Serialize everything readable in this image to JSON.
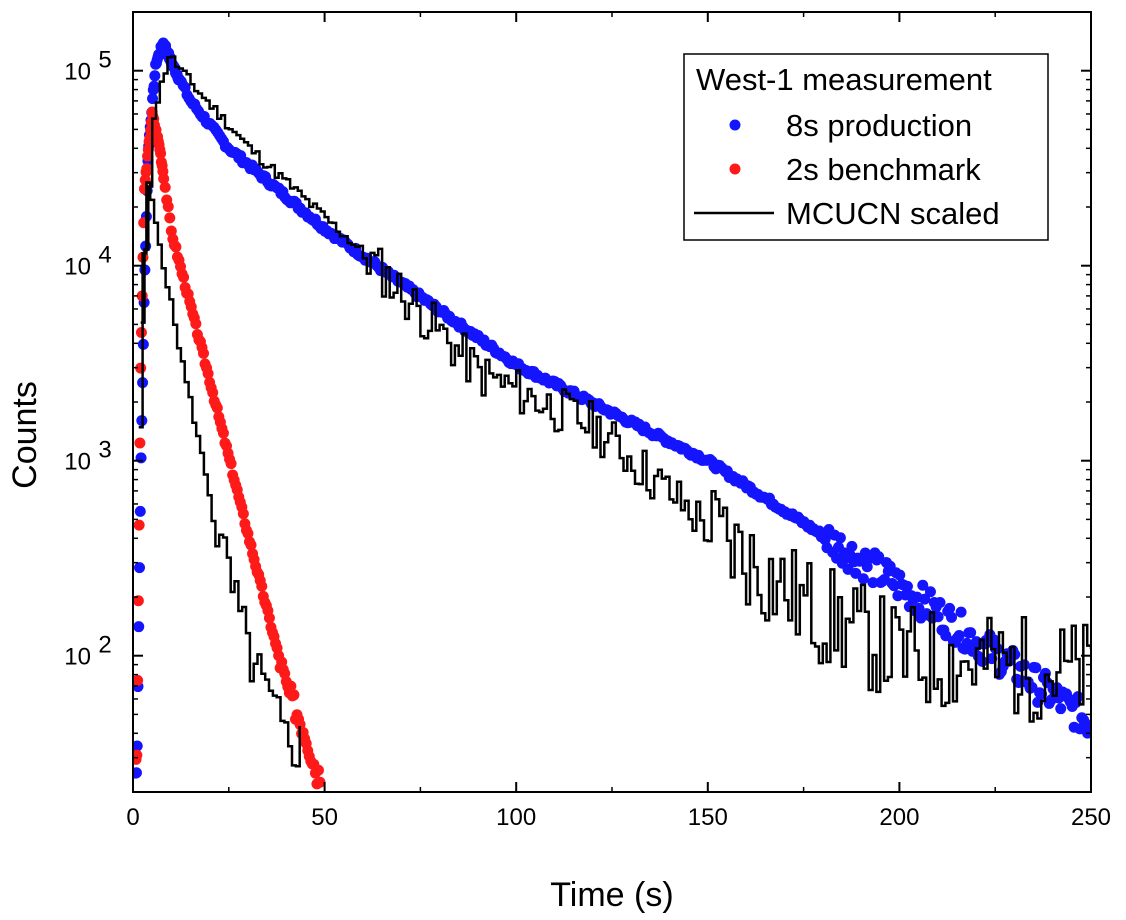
{
  "chart_data": {
    "type": "scatter",
    "title": "",
    "xlabel": "Time (s)",
    "ylabel": "Counts",
    "xlim": [
      0,
      250
    ],
    "ylim": [
      20,
      200000
    ],
    "yscale": "log",
    "x_ticks": [
      0,
      50,
      100,
      150,
      200,
      250
    ],
    "x_tick_labels": [
      "0",
      "50",
      "100",
      "150",
      "200",
      "250"
    ],
    "y_ticks": [
      100,
      1000,
      10000,
      100000
    ],
    "y_tick_labels": [
      {
        "base": "10",
        "exp": "2"
      },
      {
        "base": "10",
        "exp": "3"
      },
      {
        "base": "10",
        "exp": "4"
      },
      {
        "base": "10",
        "exp": "5"
      }
    ],
    "grid": false,
    "legend": {
      "title": "West-1 measurement",
      "position": "top-right",
      "entries": [
        "8s production",
        "2s benchmark",
        "MCUCN scaled"
      ]
    },
    "series": [
      {
        "name": "8s production",
        "kind": "markers",
        "color": "#1414ff",
        "description_points": [
          {
            "x": 1,
            "y": 25
          },
          {
            "x": 2,
            "y": 800
          },
          {
            "x": 3,
            "y": 8000
          },
          {
            "x": 4,
            "y": 40000
          },
          {
            "x": 6,
            "y": 110000
          },
          {
            "x": 8,
            "y": 140000
          },
          {
            "x": 10,
            "y": 110000
          },
          {
            "x": 15,
            "y": 70000
          },
          {
            "x": 25,
            "y": 40000
          },
          {
            "x": 50,
            "y": 15500
          },
          {
            "x": 100,
            "y": 3100
          },
          {
            "x": 150,
            "y": 1000
          },
          {
            "x": 200,
            "y": 230
          },
          {
            "x": 250,
            "y": 45
          }
        ]
      },
      {
        "name": "2s benchmark",
        "kind": "markers",
        "color": "#ff1a1a",
        "description_points": [
          {
            "x": 1,
            "y": 30
          },
          {
            "x": 2,
            "y": 3000
          },
          {
            "x": 3,
            "y": 25000
          },
          {
            "x": 5,
            "y": 60000
          },
          {
            "x": 7,
            "y": 40000
          },
          {
            "x": 10,
            "y": 15000
          },
          {
            "x": 20,
            "y": 2600
          },
          {
            "x": 30,
            "y": 420
          },
          {
            "x": 40,
            "y": 70
          },
          {
            "x": 45,
            "y": 40
          },
          {
            "x": 48,
            "y": 25
          }
        ]
      },
      {
        "name": "MCUCN scaled",
        "kind": "step-line",
        "color": "#000000",
        "description_points": [
          {
            "x": 2,
            "y": 5000
          },
          {
            "x": 5,
            "y": 60000
          },
          {
            "x": 9,
            "y": 120000
          },
          {
            "x": 15,
            "y": 85000
          },
          {
            "x": 30,
            "y": 40000
          },
          {
            "x": 60,
            "y": 11500
          },
          {
            "x": 90,
            "y": 2800
          },
          {
            "x": 120,
            "y": 1500
          },
          {
            "x": 150,
            "y": 450
          },
          {
            "x": 175,
            "y": 180
          },
          {
            "x": 200,
            "y": 100
          },
          {
            "x": 250,
            "y": 80
          },
          {
            "x": 3,
            "y": 30000
          },
          {
            "x": 12,
            "y": 3500
          },
          {
            "x": 22,
            "y": 400
          },
          {
            "x": 30,
            "y": 100
          },
          {
            "x": 40,
            "y": 35
          }
        ]
      }
    ]
  }
}
